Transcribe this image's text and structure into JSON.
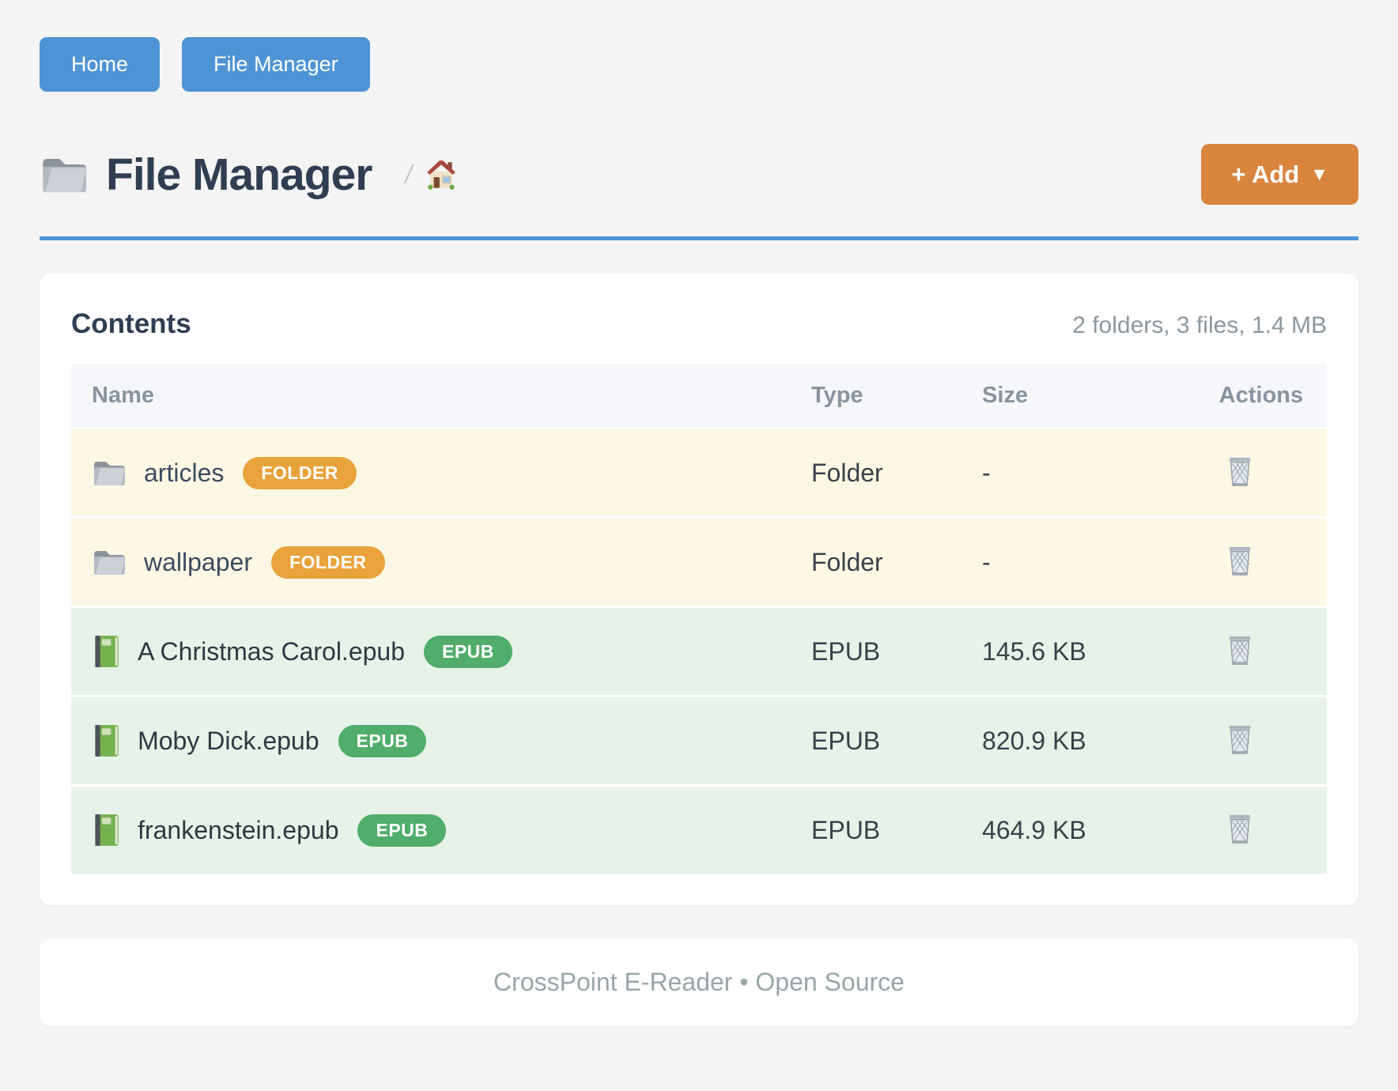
{
  "nav": {
    "home_label": "Home",
    "file_manager_label": "File Manager"
  },
  "header": {
    "title": "File Manager",
    "title_icon": "folder-icon",
    "breadcrumb_separator": "/",
    "breadcrumb_home_icon": "house-icon",
    "add_button_label": "+ Add",
    "add_button_caret": "▼"
  },
  "contents": {
    "heading": "Contents",
    "summary": "2 folders, 3 files, 1.4 MB"
  },
  "table": {
    "columns": [
      "Name",
      "Type",
      "Size",
      "Actions"
    ],
    "delete_icon": "trash-icon",
    "rows": [
      {
        "icon": "folder-icon",
        "name": "articles",
        "badge": "FOLDER",
        "type": "Folder",
        "size": "-",
        "kind": "folder"
      },
      {
        "icon": "folder-icon",
        "name": "wallpaper",
        "badge": "FOLDER",
        "type": "Folder",
        "size": "-",
        "kind": "folder"
      },
      {
        "icon": "book-icon",
        "name": "A Christmas Carol.epub",
        "badge": "EPUB",
        "type": "EPUB",
        "size": "145.6 KB",
        "kind": "epub"
      },
      {
        "icon": "book-icon",
        "name": "Moby Dick.epub",
        "badge": "EPUB",
        "type": "EPUB",
        "size": "820.9 KB",
        "kind": "epub"
      },
      {
        "icon": "book-icon",
        "name": "frankenstein.epub",
        "badge": "EPUB",
        "type": "EPUB",
        "size": "464.9 KB",
        "kind": "epub"
      }
    ]
  },
  "footer": {
    "text": "CrossPoint E-Reader • Open Source"
  },
  "colors": {
    "accent_blue": "#4e94d4",
    "accent_orange": "#d9853e",
    "badge_folder": "#e9a33c",
    "badge_epub": "#50ad6b",
    "row_folder_bg": "#fdf8e4",
    "row_epub_bg": "#e7f3e8",
    "title_color": "#2f3e52"
  }
}
